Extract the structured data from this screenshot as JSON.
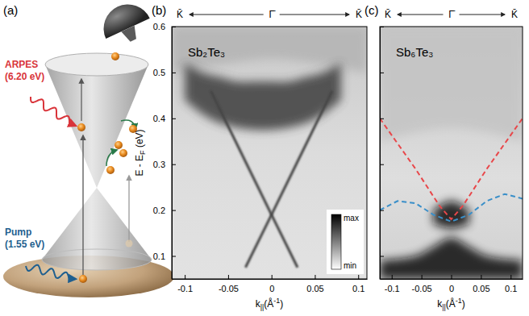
{
  "diagram": {
    "label": "(a)",
    "probe": {
      "name": "ARPES",
      "energy": "(6.20 eV)",
      "color": "#d9343a"
    },
    "pump": {
      "name": "Pump",
      "energy": "(1.55 eV)",
      "color": "#1f5f8f"
    }
  },
  "chart_data": [
    {
      "type": "heatmap",
      "panel_label": "(b)",
      "title": "Sb₂Te₃",
      "top_labels": [
        "K̄",
        "Γ̄",
        "K̄"
      ],
      "xlabel": {
        "main": "k",
        "sub": "||",
        "unit": "(Å",
        "sup": "-1",
        "close": ")"
      },
      "ylabel": {
        "main": "E - E",
        "sub": "F",
        "unit": " (eV)"
      },
      "xlim": [
        -0.115,
        0.11
      ],
      "ylim": [
        0.05,
        0.6
      ],
      "xticks": [
        -0.1,
        -0.05,
        0,
        0.05,
        0.1
      ],
      "yticks": [
        0.1,
        0.2,
        0.3,
        0.4,
        0.5,
        0.6
      ],
      "colorbar": {
        "labels": [
          "max",
          "min"
        ],
        "colors": [
          "#000000",
          "#ffffff"
        ]
      },
      "series": [
        {
          "type": "band",
          "color": "#b4b4b4",
          "x": [
            -0.115,
            -0.05,
            0,
            0.05,
            0.11
          ],
          "values": [
            0.6,
            0.6,
            0.6,
            0.6,
            0.6
          ],
          "lower": [
            0.5,
            0.52,
            0.53,
            0.52,
            0.5
          ]
        },
        {
          "type": "band",
          "color": "#3c3c3c",
          "x": [
            -0.1,
            -0.08,
            -0.06,
            -0.04,
            -0.02,
            0,
            0.02,
            0.04,
            0.06,
            0.08
          ],
          "values": [
            0.52,
            0.5,
            0.49,
            0.48,
            0.48,
            0.48,
            0.48,
            0.49,
            0.5,
            0.52
          ],
          "lower": [
            0.44,
            0.41,
            0.39,
            0.38,
            0.375,
            0.375,
            0.38,
            0.39,
            0.41,
            0.44
          ]
        },
        {
          "type": "line",
          "color": "#454545",
          "x": [
            -0.07,
            -0.035,
            0,
            0.03
          ],
          "values": [
            0.46,
            0.325,
            0.19,
            0.075
          ]
        },
        {
          "type": "line",
          "color": "#454545",
          "x": [
            0.07,
            0.035,
            0,
            -0.03
          ],
          "values": [
            0.46,
            0.325,
            0.19,
            0.075
          ]
        }
      ]
    },
    {
      "type": "heatmap",
      "panel_label": "(c)",
      "title": "Sb₆Te₃",
      "top_labels": [
        "K̄",
        "Γ̄",
        "K̄"
      ],
      "xlabel": {
        "main": "k",
        "sub": "||",
        "unit": "(Å",
        "sup": "-1",
        "close": ")"
      },
      "xlim": [
        -0.12,
        0.12
      ],
      "ylim": [
        0.05,
        0.6
      ],
      "xticks": [
        -0.1,
        -0.05,
        0,
        0.05,
        0.1
      ],
      "yticks": [
        0.1,
        0.2,
        0.3,
        0.4,
        0.5,
        0.6
      ],
      "tick_labels": "x",
      "series": [
        {
          "type": "band",
          "color": "#c4c4c4",
          "x": [
            -0.12,
            -0.06,
            0,
            0.06,
            0.12
          ],
          "values": [
            0.6,
            0.6,
            0.6,
            0.6,
            0.6
          ],
          "lower": [
            0.35,
            0.37,
            0.38,
            0.37,
            0.35
          ]
        },
        {
          "type": "band",
          "color": "#111111",
          "x": [
            -0.12,
            -0.06,
            -0.03,
            0,
            0.03,
            0.06,
            0.12
          ],
          "values": [
            0.09,
            0.1,
            0.12,
            0.14,
            0.12,
            0.1,
            0.09
          ],
          "lower": [
            0.05,
            0.05,
            0.05,
            0.05,
            0.05,
            0.05,
            0.05
          ]
        },
        {
          "type": "band",
          "color": "#111111",
          "x": [
            -0.03,
            0,
            0.03
          ],
          "values": [
            0.2,
            0.22,
            0.2
          ],
          "lower": [
            0.17,
            0.16,
            0.17
          ]
        },
        {
          "type": "line",
          "color": "#e8474a",
          "line_style": "dashed",
          "x": [
            -0.12,
            -0.06,
            -0.02,
            0,
            0.02,
            0.06,
            0.12
          ],
          "values": [
            0.4,
            0.29,
            0.21,
            0.18,
            0.21,
            0.29,
            0.4
          ]
        },
        {
          "type": "line",
          "color": "#3a8fc9",
          "line_style": "dashed",
          "x": [
            -0.12,
            -0.09,
            -0.06,
            -0.03,
            0,
            0.03,
            0.06,
            0.09,
            0.12
          ],
          "values": [
            0.2,
            0.22,
            0.215,
            0.19,
            0.175,
            0.19,
            0.22,
            0.235,
            0.225
          ]
        }
      ]
    }
  ]
}
